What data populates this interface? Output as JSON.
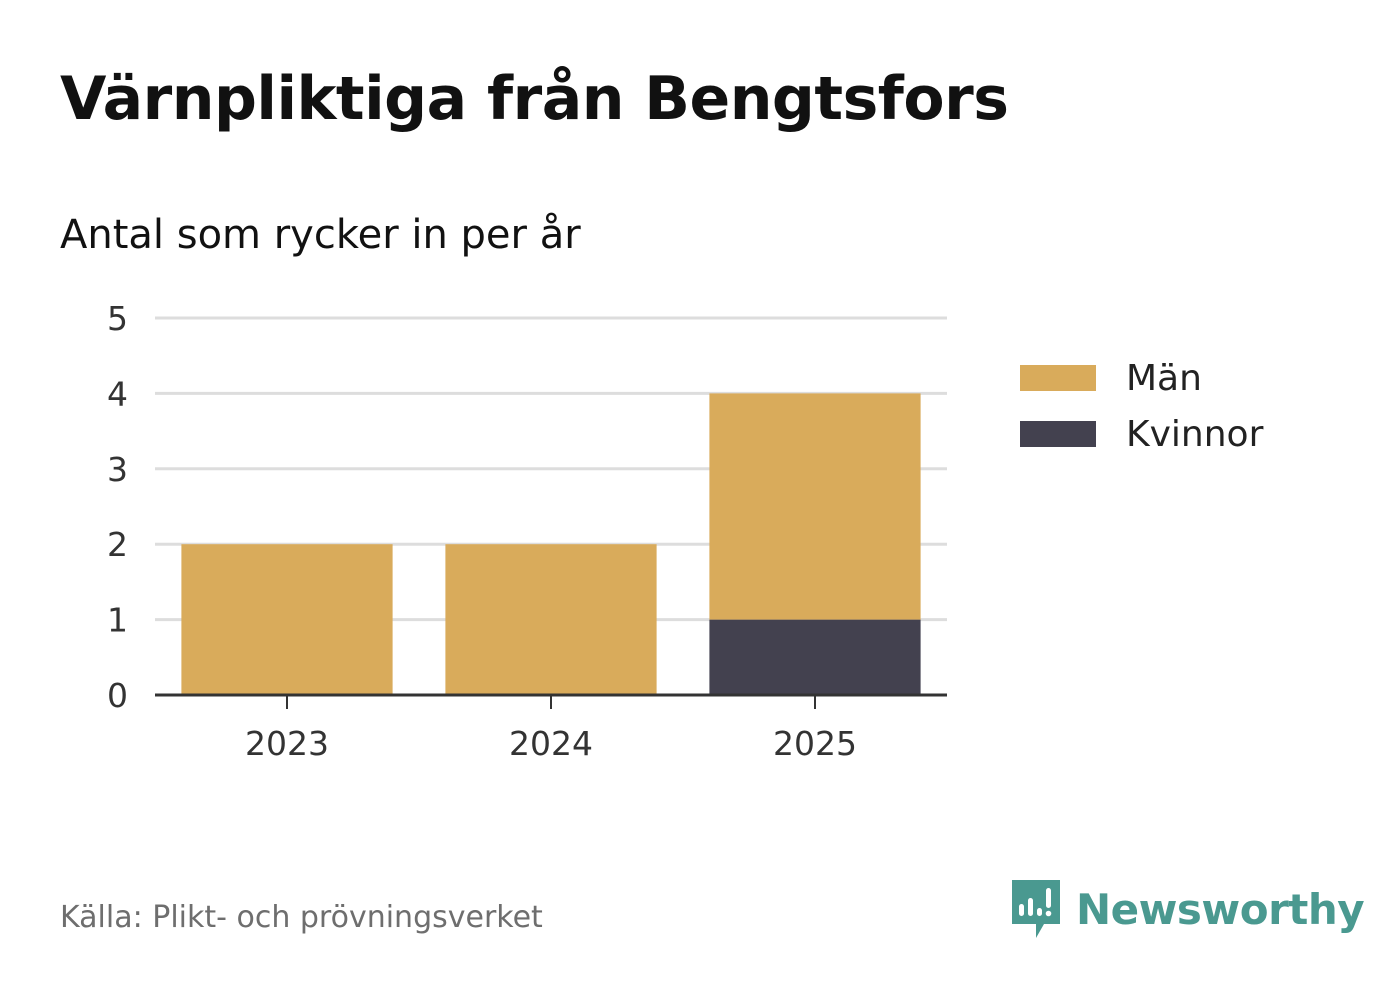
{
  "header": {
    "title": "Värnpliktiga från Bengtsfors",
    "subtitle": "Antal som rycker in per år"
  },
  "footer": {
    "source": "Källa: Plikt- och prövningsverket",
    "brand": "Newsworthy"
  },
  "colors": {
    "men": "#d9ab5b",
    "women": "#43414f",
    "grid": "#dddddd",
    "axis": "#333333",
    "brand": "#4a9990"
  },
  "chart_data": {
    "type": "bar",
    "stacked": true,
    "title": "Värnpliktiga från Bengtsfors",
    "subtitle": "Antal som rycker in per år",
    "xlabel": "",
    "ylabel": "",
    "categories": [
      "2023",
      "2024",
      "2025"
    ],
    "series": [
      {
        "name": "Kvinnor",
        "values": [
          0,
          0,
          1
        ]
      },
      {
        "name": "Män",
        "values": [
          2,
          2,
          3
        ]
      }
    ],
    "ylim": [
      0,
      5
    ],
    "yticks": [
      0,
      1,
      2,
      3,
      4,
      5
    ],
    "grid": true,
    "legend": {
      "position": "right",
      "entries": [
        "Män",
        "Kvinnor"
      ]
    }
  }
}
